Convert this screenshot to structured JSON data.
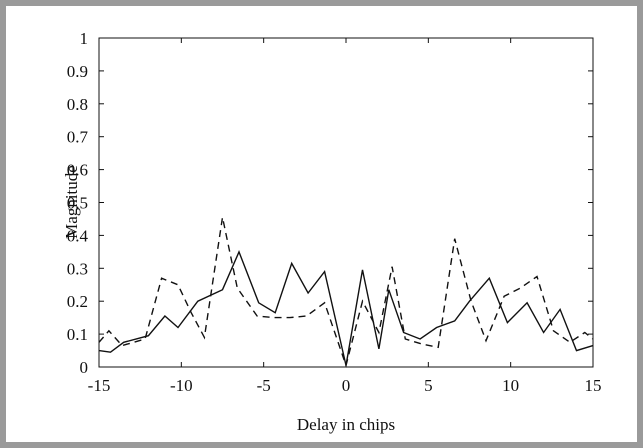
{
  "chart_data": {
    "type": "line",
    "title": "",
    "xlabel": "Delay in chips",
    "ylabel": "Magnitude",
    "xlim": [
      -15,
      15
    ],
    "ylim": [
      0,
      1
    ],
    "xticks": [
      -15,
      -10,
      -5,
      0,
      5,
      10,
      15
    ],
    "yticks": [
      0,
      0.1,
      0.2,
      0.3,
      0.4,
      0.5,
      0.6,
      0.7,
      0.8,
      0.9,
      1
    ],
    "grid": false,
    "legend": "none",
    "series": [
      {
        "style": "solid",
        "color": "#111111",
        "x": [
          -15,
          -14.3,
          -13.5,
          -12,
          -11,
          -10.2,
          -9,
          -7.5,
          -6.5,
          -5.3,
          -4.3,
          -3.3,
          -2.3,
          -1.3,
          0,
          1,
          2,
          2.6,
          3.5,
          4.5,
          5.5,
          6.6,
          7.5,
          8.7,
          9.8,
          11,
          12,
          13,
          14,
          15
        ],
        "y": [
          0.05,
          0.045,
          0.075,
          0.095,
          0.155,
          0.12,
          0.2,
          0.235,
          0.35,
          0.195,
          0.165,
          0.315,
          0.225,
          0.29,
          0.005,
          0.295,
          0.055,
          0.235,
          0.105,
          0.085,
          0.12,
          0.14,
          0.2,
          0.27,
          0.135,
          0.195,
          0.105,
          0.175,
          0.05,
          0.065
        ]
      },
      {
        "style": "dashed",
        "color": "#111111",
        "x": [
          -15,
          -14.4,
          -13.6,
          -12.2,
          -11.2,
          -10.2,
          -9.4,
          -8.6,
          -7.5,
          -6.6,
          -5.4,
          -4.4,
          -3.4,
          -2.4,
          -1.3,
          0,
          1,
          2,
          2.8,
          3.6,
          4.6,
          5.6,
          6.6,
          7.6,
          8.5,
          9.6,
          10.6,
          11.6,
          12.6,
          13.6,
          14.5,
          15
        ],
        "y": [
          0.075,
          0.11,
          0.065,
          0.085,
          0.27,
          0.25,
          0.165,
          0.09,
          0.455,
          0.24,
          0.155,
          0.15,
          0.15,
          0.155,
          0.195,
          0.005,
          0.2,
          0.105,
          0.305,
          0.085,
          0.07,
          0.06,
          0.39,
          0.2,
          0.08,
          0.215,
          0.24,
          0.275,
          0.11,
          0.075,
          0.105,
          0.085
        ]
      }
    ]
  }
}
